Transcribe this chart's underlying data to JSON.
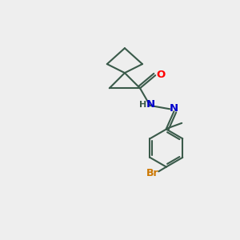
{
  "bg_color": "#eeeeee",
  "bond_color": "#3a5a4a",
  "bond_width": 1.5,
  "atom_colors": {
    "O": "#ff0000",
    "N": "#0000cc",
    "Br": "#cc7700",
    "C": "#3a5a4a",
    "H": "#3a5a4a"
  },
  "figsize": [
    3.0,
    3.0
  ],
  "dpi": 100
}
